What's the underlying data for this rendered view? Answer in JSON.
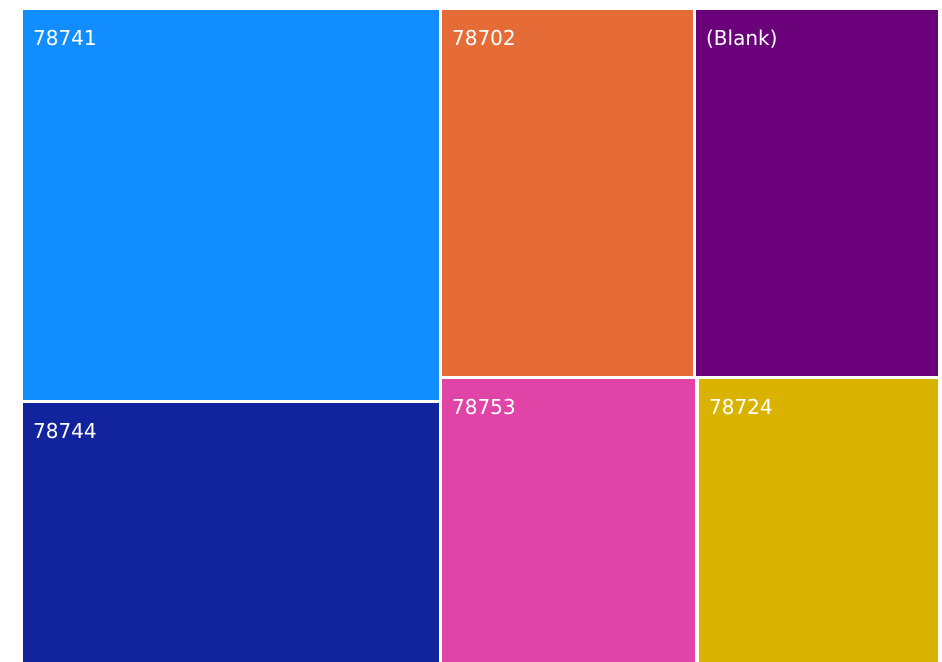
{
  "chart_data": {
    "type": "treemap",
    "tiles": [
      {
        "label": "78741",
        "color": "#118DFF"
      },
      {
        "label": "78744",
        "color": "#12239E"
      },
      {
        "label": "78702",
        "color": "#E66C37"
      },
      {
        "label": "(Blank)",
        "color": "#6B007B"
      },
      {
        "label": "78753",
        "color": "#E044A7"
      },
      {
        "label": "78724",
        "color": "#D9B300"
      }
    ]
  }
}
